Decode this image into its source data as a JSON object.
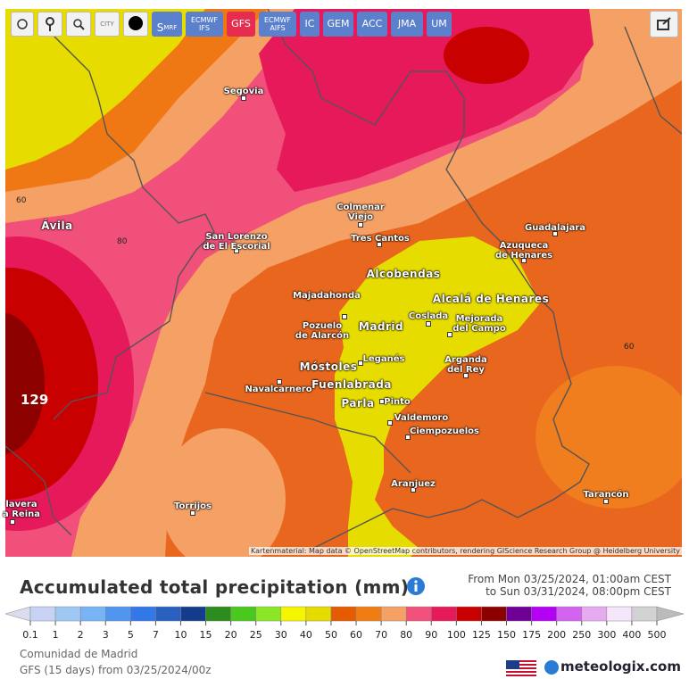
{
  "toolbar": {
    "city_icon": "CITY",
    "models": [
      [
        "S",
        "MRF"
      ],
      [
        "ECMWF",
        "IFS"
      ],
      [
        "GFS"
      ],
      [
        "ECMWF",
        "AIFS"
      ],
      [
        "IC"
      ],
      [
        "GEM"
      ],
      [
        "ACC"
      ],
      [
        "JMA"
      ],
      [
        "UM"
      ]
    ],
    "active_model": "GFS"
  },
  "map": {
    "places": [
      "Segovia",
      "Ávila",
      "San Lorenzo\nde El Escorial",
      "Colmenar\nViejo",
      "Tres Cantos",
      "Guadalajara",
      "Azuqueca\nde Henares",
      "Alcobendas",
      "Majadahonda",
      "Alcalá de Henares",
      "Pozuelo\nde Alarcón",
      "Madrid",
      "Coslada",
      "Mejorada\ndel Campo",
      "Móstoles",
      "Leganés",
      "Arganda\ndel Rey",
      "Fuenlabrada",
      "Navalcarnero",
      "Parla",
      "Pinto",
      "Valdemoro",
      "Ciempozuelos",
      "Aranjuez",
      "Torrijos",
      "Tarancón",
      "lavera\na Reina"
    ],
    "contour_labels": [
      "60",
      "80",
      "60",
      "129"
    ],
    "attribution": "Kartenmaterial: Map data © OpenStreetMap contributors, rendering GIScience Research Group @ Heidelberg University"
  },
  "title": "Accumulated total precipitation (mm)",
  "period": {
    "from": "From Mon 03/25/2024, 01:00am CEST",
    "to": "to Sun 03/31/2024, 08:00pm CEST"
  },
  "legend": {
    "labels": [
      0.1,
      1,
      2,
      3,
      5,
      7,
      10,
      15,
      20,
      25,
      30,
      40,
      50,
      60,
      70,
      80,
      90,
      100,
      125,
      150,
      175,
      200,
      250,
      300,
      400,
      500
    ],
    "colors": [
      "#dcdcf0",
      "#c8d2f5",
      "#a0c8f5",
      "#78b4f5",
      "#5096f0",
      "#3278e6",
      "#2860c0",
      "#143c8c",
      "#2d8c1e",
      "#4bc81e",
      "#8ce628",
      "#f5f500",
      "#e6dc00",
      "#e65a00",
      "#f07d14",
      "#f5a064",
      "#f0507a",
      "#e6195a",
      "#c80000",
      "#8c0000",
      "#6e0096",
      "#b400f5",
      "#d264f0",
      "#e6aaf0",
      "#f5e6fa",
      "#d2d2d2",
      "#bbbbbb"
    ]
  },
  "footer": {
    "region": "Comunidad de Madrid",
    "run": "GFS (15 days) from 03/25/2024/00z",
    "brand": "meteologix.com"
  }
}
